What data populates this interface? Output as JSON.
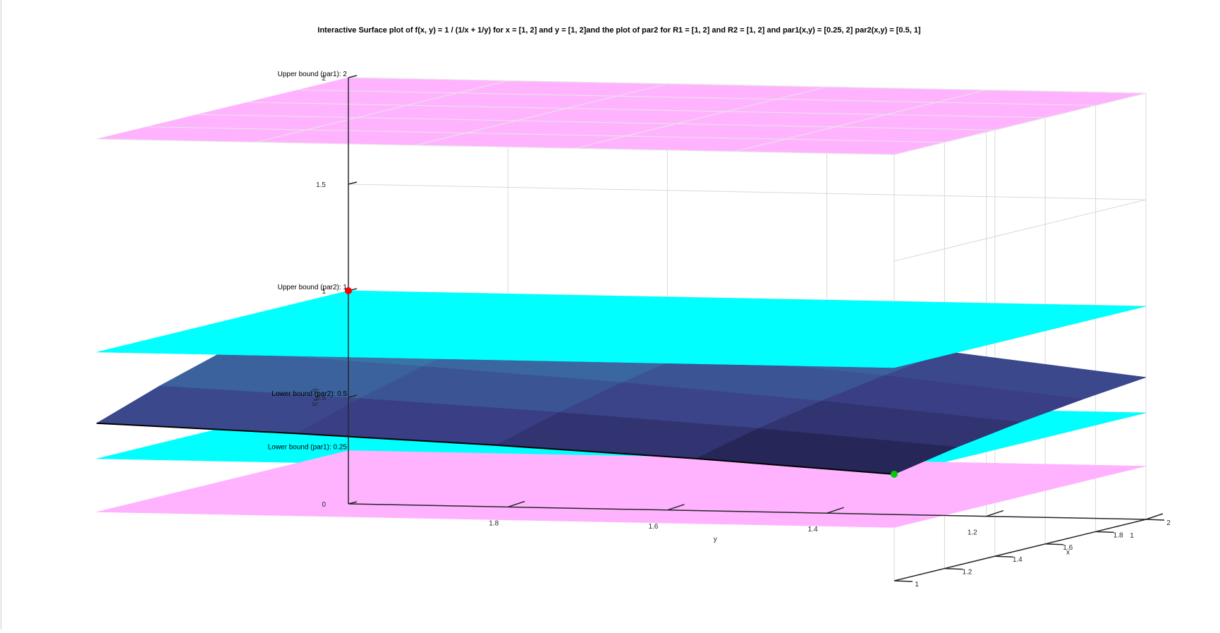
{
  "chart_data": {
    "type": "surface3d",
    "title": "Interactive Surface plot of f(x, y) = 1 / (1/x + 1/y) for x = [1, 2] and y = [1, 2]and the plot of par2 for R1 = [1, 2] and R2 = [1, 2] and par1(x,y) = [0.25, 2] par2(x,y) = [0.5, 1]",
    "xlabel": "x",
    "ylabel": "y",
    "zlabel": "f(x, y)",
    "xlim": [
      1,
      2
    ],
    "ylim": [
      1,
      2
    ],
    "zlim": [
      0,
      2
    ],
    "x_ticks": [
      "1",
      "1.2",
      "1.4",
      "1.6",
      "1.8",
      "2"
    ],
    "y_ticks": [
      "1.8",
      "1.6",
      "1.4",
      "1.2",
      "1"
    ],
    "z_ticks": [
      "0",
      "0.5",
      "1",
      "1.5",
      "2"
    ],
    "grid": true,
    "planes": [
      {
        "label": "Upper bound (par1): 2",
        "z": 2,
        "color": "#ffb3ff"
      },
      {
        "label": "Upper bound (par2): 1",
        "z": 1,
        "color": "#00ffff"
      },
      {
        "label": "Lower bound (par2): 0.5",
        "z": 0.5,
        "color": "#00ffff"
      },
      {
        "label": "Lower bound (par1): 0.25",
        "z": 0.25,
        "color": "#ffb3ff"
      }
    ],
    "surface": {
      "function": "1 / (1/x + 1/y)",
      "x_values": [
        1,
        1.25,
        1.5,
        1.75,
        2
      ],
      "y_values": [
        1,
        1.25,
        1.5,
        1.75,
        2
      ],
      "colormap": [
        "#1b1a3e",
        "#3b3f86",
        "#3b6ea4",
        "#2e8fa8"
      ]
    },
    "markers": [
      {
        "x": 2,
        "y": 2,
        "z": 1,
        "color": "#ff0000"
      },
      {
        "x": 1,
        "y": 1,
        "z": 0.5,
        "color": "#00cc00"
      }
    ]
  }
}
